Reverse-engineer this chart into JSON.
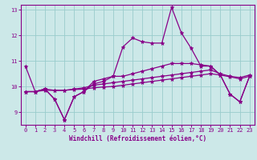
{
  "xlabel": "Windchill (Refroidissement éolien,°C)",
  "bg_color": "#cce8e8",
  "line_color": "#880088",
  "grid_color": "#99cccc",
  "spine_color": "#880088",
  "ylim": [
    8.5,
    13.2
  ],
  "xlim": [
    -0.5,
    23.5
  ],
  "yticks": [
    9,
    10,
    11,
    12,
    13
  ],
  "xticks": [
    0,
    1,
    2,
    3,
    4,
    5,
    6,
    7,
    8,
    9,
    10,
    11,
    12,
    13,
    14,
    15,
    16,
    17,
    18,
    19,
    20,
    21,
    22,
    23
  ],
  "line1": [
    10.8,
    9.8,
    9.9,
    9.5,
    8.7,
    9.6,
    9.8,
    10.1,
    10.2,
    10.4,
    11.55,
    11.9,
    11.75,
    11.7,
    11.7,
    13.1,
    12.1,
    11.5,
    10.8,
    10.8,
    10.45,
    9.7,
    9.4,
    10.4
  ],
  "line2": [
    9.8,
    9.8,
    9.9,
    9.5,
    8.7,
    9.6,
    9.8,
    10.2,
    10.3,
    10.4,
    10.4,
    10.5,
    10.6,
    10.7,
    10.8,
    10.9,
    10.9,
    10.9,
    10.85,
    10.8,
    10.45,
    9.7,
    9.4,
    10.4
  ],
  "line3": [
    9.8,
    9.8,
    9.9,
    9.85,
    9.85,
    9.9,
    9.95,
    10.05,
    10.1,
    10.15,
    10.2,
    10.25,
    10.3,
    10.35,
    10.4,
    10.45,
    10.5,
    10.55,
    10.6,
    10.65,
    10.5,
    10.4,
    10.35,
    10.45
  ],
  "line4": [
    9.8,
    9.8,
    9.85,
    9.85,
    9.85,
    9.88,
    9.9,
    9.95,
    9.98,
    10.0,
    10.05,
    10.1,
    10.15,
    10.2,
    10.25,
    10.3,
    10.35,
    10.4,
    10.45,
    10.5,
    10.45,
    10.38,
    10.3,
    10.4
  ]
}
